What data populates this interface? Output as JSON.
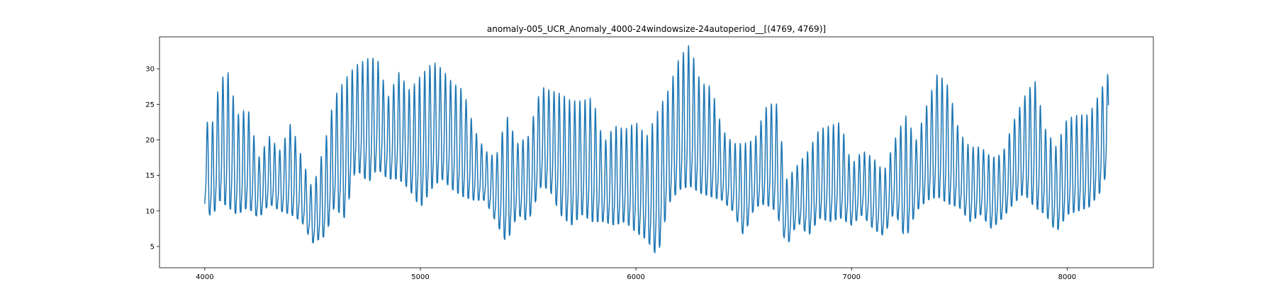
{
  "chart_data": {
    "type": "line",
    "title": "anomaly-005_UCR_Anomaly_4000-24windowsize-24autoperiod__[(4769, 4769)]",
    "xlabel": "",
    "ylabel": "",
    "xlim": [
      3790,
      8400
    ],
    "ylim": [
      2.0,
      34.5
    ],
    "xticks": [
      4000,
      5000,
      6000,
      7000,
      8000
    ],
    "xtick_labels": [
      "4000",
      "5000",
      "6000",
      "7000",
      "8000"
    ],
    "yticks": [
      5,
      10,
      15,
      20,
      25,
      30
    ],
    "ytick_labels": [
      "5",
      "10",
      "15",
      "20",
      "25",
      "30"
    ],
    "grid": false,
    "legend": "none",
    "x_start": 4000,
    "x_end": 8192,
    "period": 24,
    "series": [
      {
        "color": "#1f77b4",
        "upper_envelope": [
          [
            4000,
            23.2
          ],
          [
            4030,
            21.5
          ],
          [
            4070,
            28.5
          ],
          [
            4110,
            29.5
          ],
          [
            4150,
            23.5
          ],
          [
            4200,
            24.5
          ],
          [
            4250,
            17.5
          ],
          [
            4300,
            20.5
          ],
          [
            4350,
            18.5
          ],
          [
            4400,
            22.5
          ],
          [
            4450,
            17.5
          ],
          [
            4500,
            13.0
          ],
          [
            4560,
            20.0
          ],
          [
            4600,
            26.0
          ],
          [
            4650,
            28.5
          ],
          [
            4700,
            30.5
          ],
          [
            4760,
            31.5
          ],
          [
            4800,
            31.5
          ],
          [
            4850,
            26.0
          ],
          [
            4900,
            29.5
          ],
          [
            4950,
            27.0
          ],
          [
            5000,
            29.0
          ],
          [
            5060,
            31.0
          ],
          [
            5100,
            30.0
          ],
          [
            5150,
            28.0
          ],
          [
            5200,
            27.0
          ],
          [
            5250,
            21.5
          ],
          [
            5300,
            18.5
          ],
          [
            5350,
            17.5
          ],
          [
            5400,
            23.5
          ],
          [
            5450,
            19.5
          ],
          [
            5500,
            20.5
          ],
          [
            5560,
            27.5
          ],
          [
            5600,
            27.0
          ],
          [
            5650,
            26.5
          ],
          [
            5700,
            25.5
          ],
          [
            5750,
            25.5
          ],
          [
            5800,
            26.0
          ],
          [
            5850,
            19.5
          ],
          [
            5900,
            22.0
          ],
          [
            5950,
            21.5
          ],
          [
            6000,
            22.5
          ],
          [
            6050,
            20.5
          ],
          [
            6100,
            24.0
          ],
          [
            6150,
            27.0
          ],
          [
            6200,
            31.5
          ],
          [
            6250,
            33.5
          ],
          [
            6300,
            28.0
          ],
          [
            6350,
            27.5
          ],
          [
            6400,
            21.5
          ],
          [
            6450,
            19.5
          ],
          [
            6500,
            19.5
          ],
          [
            6550,
            20.0
          ],
          [
            6600,
            24.5
          ],
          [
            6650,
            25.5
          ],
          [
            6700,
            14.5
          ],
          [
            6750,
            16.5
          ],
          [
            6800,
            18.5
          ],
          [
            6850,
            21.5
          ],
          [
            6900,
            22.0
          ],
          [
            6950,
            22.5
          ],
          [
            7000,
            16.5
          ],
          [
            7050,
            18.5
          ],
          [
            7100,
            17.5
          ],
          [
            7150,
            15.5
          ],
          [
            7200,
            20.0
          ],
          [
            7250,
            23.5
          ],
          [
            7300,
            20.0
          ],
          [
            7350,
            25.0
          ],
          [
            7400,
            29.5
          ],
          [
            7450,
            27.5
          ],
          [
            7500,
            21.0
          ],
          [
            7550,
            19.0
          ],
          [
            7600,
            19.0
          ],
          [
            7650,
            17.5
          ],
          [
            7700,
            18.0
          ],
          [
            7750,
            22.5
          ],
          [
            7800,
            26.0
          ],
          [
            7850,
            28.5
          ],
          [
            7900,
            21.5
          ],
          [
            7950,
            19.0
          ],
          [
            8000,
            23.0
          ],
          [
            8050,
            23.5
          ],
          [
            8100,
            23.5
          ],
          [
            8150,
            26.5
          ],
          [
            8192,
            29.5
          ]
        ],
        "lower_envelope": [
          [
            4000,
            11.0
          ],
          [
            4030,
            9.0
          ],
          [
            4070,
            11.5
          ],
          [
            4110,
            10.5
          ],
          [
            4150,
            9.5
          ],
          [
            4200,
            10.5
          ],
          [
            4250,
            9.0
          ],
          [
            4300,
            11.0
          ],
          [
            4350,
            10.0
          ],
          [
            4400,
            9.5
          ],
          [
            4450,
            8.5
          ],
          [
            4500,
            5.5
          ],
          [
            4560,
            6.5
          ],
          [
            4600,
            10.5
          ],
          [
            4650,
            9.0
          ],
          [
            4700,
            16.0
          ],
          [
            4760,
            14.0
          ],
          [
            4800,
            16.0
          ],
          [
            4850,
            14.5
          ],
          [
            4900,
            14.5
          ],
          [
            4950,
            13.0
          ],
          [
            5000,
            10.5
          ],
          [
            5060,
            13.5
          ],
          [
            5100,
            14.5
          ],
          [
            5150,
            13.0
          ],
          [
            5200,
            12.0
          ],
          [
            5250,
            11.5
          ],
          [
            5300,
            11.5
          ],
          [
            5350,
            8.5
          ],
          [
            5400,
            5.5
          ],
          [
            5450,
            9.5
          ],
          [
            5500,
            8.5
          ],
          [
            5560,
            13.5
          ],
          [
            5600,
            13.0
          ],
          [
            5650,
            9.5
          ],
          [
            5700,
            8.0
          ],
          [
            5750,
            9.5
          ],
          [
            5800,
            8.5
          ],
          [
            5850,
            8.5
          ],
          [
            5900,
            8.0
          ],
          [
            5950,
            8.5
          ],
          [
            6000,
            7.0
          ],
          [
            6050,
            6.0
          ],
          [
            6100,
            3.5
          ],
          [
            6150,
            11.0
          ],
          [
            6200,
            13.0
          ],
          [
            6250,
            13.5
          ],
          [
            6300,
            12.5
          ],
          [
            6350,
            12.0
          ],
          [
            6400,
            11.5
          ],
          [
            6450,
            10.0
          ],
          [
            6500,
            6.5
          ],
          [
            6550,
            10.5
          ],
          [
            6600,
            11.0
          ],
          [
            6650,
            10.0
          ],
          [
            6700,
            5.0
          ],
          [
            6750,
            8.5
          ],
          [
            6800,
            6.5
          ],
          [
            6850,
            9.0
          ],
          [
            6900,
            8.5
          ],
          [
            6950,
            9.0
          ],
          [
            7000,
            8.0
          ],
          [
            7050,
            9.5
          ],
          [
            7100,
            7.5
          ],
          [
            7150,
            6.5
          ],
          [
            7200,
            10.0
          ],
          [
            7250,
            6.0
          ],
          [
            7300,
            10.0
          ],
          [
            7350,
            11.5
          ],
          [
            7400,
            12.0
          ],
          [
            7450,
            11.0
          ],
          [
            7500,
            10.5
          ],
          [
            7550,
            8.5
          ],
          [
            7600,
            9.5
          ],
          [
            7650,
            7.5
          ],
          [
            7700,
            9.0
          ],
          [
            7750,
            11.0
          ],
          [
            7800,
            12.5
          ],
          [
            7850,
            10.5
          ],
          [
            7900,
            9.5
          ],
          [
            7950,
            7.0
          ],
          [
            8000,
            9.5
          ],
          [
            8050,
            10.0
          ],
          [
            8100,
            10.5
          ],
          [
            8150,
            12.5
          ],
          [
            8192,
            16.0
          ]
        ]
      }
    ]
  }
}
